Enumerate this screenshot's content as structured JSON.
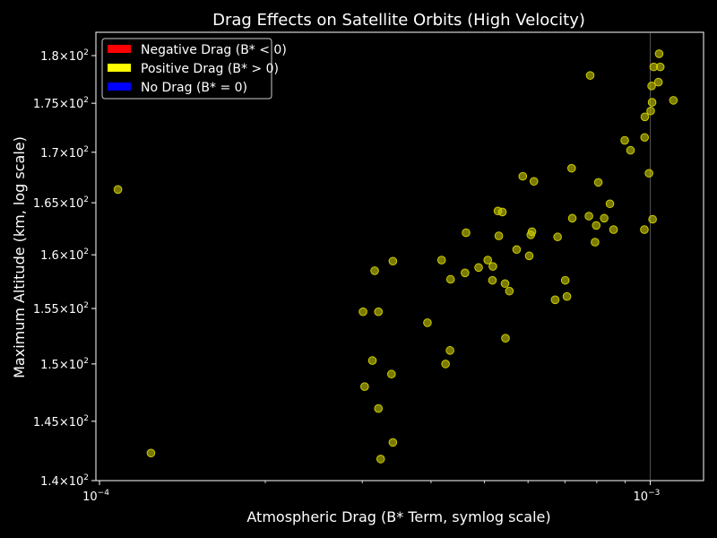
{
  "chart_data": {
    "type": "scatter",
    "title": "Drag Effects on Satellite Orbits (High Velocity)",
    "xlabel": "Atmospheric Drag (B* Term, symlog scale)",
    "ylabel": "Maximum Altitude (km, log scale)",
    "x_scale": "log",
    "y_scale": "log",
    "xlim": [
      9.85e-05,
      0.00125
    ],
    "ylim": [
      140,
      182.5
    ],
    "x_ticks": [
      {
        "value": 0.0001,
        "base": "10",
        "exp": "−4"
      },
      {
        "value": 0.001,
        "base": "10",
        "exp": "−3"
      }
    ],
    "y_ticks": [
      {
        "value": 140,
        "mant": "1.4",
        "exp": "2"
      },
      {
        "value": 145,
        "mant": "1.45",
        "exp": "2"
      },
      {
        "value": 150,
        "mant": "1.5",
        "exp": "2"
      },
      {
        "value": 155,
        "mant": "1.55",
        "exp": "2"
      },
      {
        "value": 160,
        "mant": "1.6",
        "exp": "2"
      },
      {
        "value": 165,
        "mant": "1.65",
        "exp": "2"
      },
      {
        "value": 170,
        "mant": "1.7",
        "exp": "2"
      },
      {
        "value": 175,
        "mant": "1.75",
        "exp": "2"
      },
      {
        "value": 180,
        "mant": "1.8",
        "exp": "2"
      }
    ],
    "linthresh_x": 0.001,
    "grid": false,
    "legend_position": "top-left",
    "legend": [
      {
        "label": "Negative Drag (B* < 0)",
        "color": "#ff0000"
      },
      {
        "label": "Positive Drag (B* > 0)",
        "color": "#ffff00"
      },
      {
        "label": "No Drag (B* = 0)",
        "color": "#0000ff"
      }
    ],
    "series": [
      {
        "color": "#cccc00",
        "points": [
          [
            0.000108,
            166.3
          ],
          [
            0.000124,
            142.3
          ],
          [
            0.000301,
            154.7
          ],
          [
            0.000303,
            148.0
          ],
          [
            0.000313,
            150.3
          ],
          [
            0.000316,
            158.5
          ],
          [
            0.000321,
            154.7
          ],
          [
            0.000321,
            146.1
          ],
          [
            0.000324,
            141.8
          ],
          [
            0.000339,
            149.1
          ],
          [
            0.000341,
            143.2
          ],
          [
            0.000341,
            159.4
          ],
          [
            0.000394,
            153.7
          ],
          [
            0.000418,
            159.5
          ],
          [
            0.000425,
            150.0
          ],
          [
            0.000433,
            151.2
          ],
          [
            0.000434,
            157.7
          ],
          [
            0.000461,
            158.3
          ],
          [
            0.000463,
            162.1
          ],
          [
            0.000488,
            158.8
          ],
          [
            0.000507,
            159.5
          ],
          [
            0.000517,
            157.6
          ],
          [
            0.000518,
            158.9
          ],
          [
            0.000529,
            164.2
          ],
          [
            0.000531,
            161.8
          ],
          [
            0.000539,
            164.1
          ],
          [
            0.000545,
            157.3
          ],
          [
            0.000546,
            152.3
          ],
          [
            0.000555,
            156.6
          ],
          [
            0.000572,
            160.5
          ],
          [
            0.000587,
            167.6
          ],
          [
            0.000603,
            159.9
          ],
          [
            0.000607,
            161.9
          ],
          [
            0.00061,
            162.2
          ],
          [
            0.000615,
            167.1
          ],
          [
            0.000672,
            155.8
          ],
          [
            0.000679,
            161.7
          ],
          [
            0.000701,
            157.6
          ],
          [
            0.000706,
            156.1
          ],
          [
            0.00072,
            168.4
          ],
          [
            0.000722,
            163.5
          ],
          [
            0.000778,
            177.9
          ],
          [
            0.000774,
            163.7
          ],
          [
            0.000794,
            161.2
          ],
          [
            0.000798,
            162.8
          ],
          [
            0.000805,
            167.0
          ],
          [
            0.000825,
            163.5
          ],
          [
            0.000845,
            164.9
          ],
          [
            0.000858,
            162.4
          ],
          [
            0.000899,
            171.2
          ],
          [
            0.000921,
            170.2
          ],
          [
            0.000976,
            162.4
          ],
          [
            0.000977,
            171.5
          ],
          [
            0.000978,
            173.6
          ],
          [
            0.000995,
            167.9
          ],
          [
            0.001002,
            174.2
          ],
          [
            0.001006,
            176.8
          ],
          [
            0.001008,
            175.1
          ],
          [
            0.00101,
            163.4
          ],
          [
            0.001015,
            178.8
          ],
          [
            0.001035,
            177.2
          ],
          [
            0.001038,
            180.2
          ],
          [
            0.001043,
            178.8
          ],
          [
            0.001102,
            175.3
          ]
        ]
      }
    ]
  }
}
